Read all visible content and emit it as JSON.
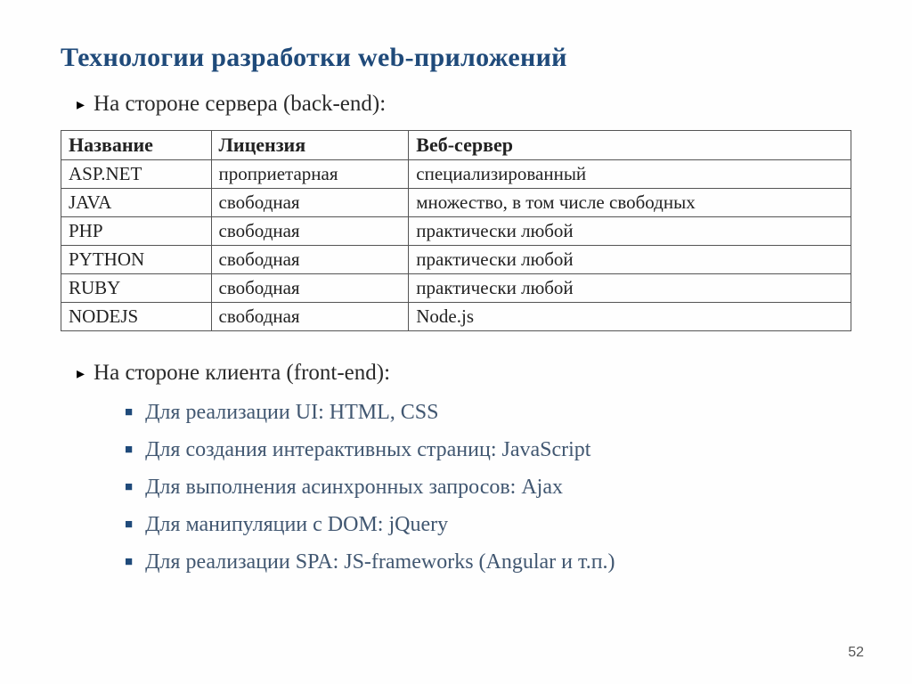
{
  "title": "Технологии разработки web-приложений",
  "section1": {
    "heading": "На стороне сервера (back-end):"
  },
  "table": {
    "columns": [
      "Название",
      "Лицензия",
      "Веб-сервер"
    ],
    "rows": [
      [
        "ASP.NET",
        "проприетарная",
        "специализированный"
      ],
      [
        "JAVA",
        "свободная",
        "множество, в том числе свободных"
      ],
      [
        "PHP",
        "свободная",
        "практически любой"
      ],
      [
        "PYTHON",
        "свободная",
        "практически любой"
      ],
      [
        "RUBY",
        "свободная",
        "практически любой"
      ],
      [
        "NODEJS",
        "свободная",
        "Node.js"
      ]
    ],
    "col_widths": [
      "19%",
      "25%",
      "56%"
    ],
    "border_color": "#555",
    "header_fontsize": 22,
    "cell_fontsize": 21
  },
  "section2": {
    "heading": "На стороне клиента (front-end):",
    "items": [
      "Для реализации UI: HTML, CSS",
      "Для создания интерактивных страниц: JavaScript",
      "Для выполнения асинхронных запросов: Ajax",
      "Для манипуляции с DOM: jQuery",
      "Для реализации SPA: JS-frameworks (Angular и т.п.)"
    ]
  },
  "page_number": "52",
  "colors": {
    "title": "#1f4a7a",
    "bullet_square": "#1f4a7a",
    "sub_text": "#415771",
    "body_text": "#2a2a2a",
    "background": "#fefefe"
  },
  "fonts": {
    "family": "Times New Roman, Georgia, serif",
    "title_size": 30,
    "primary_bullet_size": 25,
    "secondary_bullet_size": 24
  }
}
